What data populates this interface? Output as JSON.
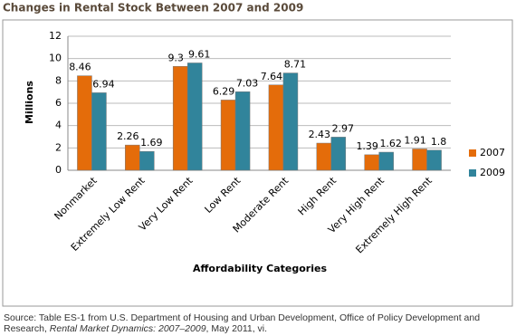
{
  "chart_data": {
    "type": "bar",
    "title": "Changes in Rental Stock Between 2007 and 2009",
    "categories": [
      "Nonmarket",
      "Extremely Low Rent",
      "Very Low Rent",
      "Low Rent",
      "Moderate Rent",
      "High Rent",
      "Very High Rent",
      "Extremely High Rent"
    ],
    "series": [
      {
        "name": "2007",
        "color": "#e46c0a",
        "values": [
          8.46,
          2.26,
          9.3,
          6.29,
          7.64,
          2.43,
          1.39,
          1.91
        ]
      },
      {
        "name": "2009",
        "color": "#31849b",
        "values": [
          6.94,
          1.69,
          9.61,
          7.03,
          8.71,
          2.97,
          1.62,
          1.8
        ]
      }
    ],
    "ylabel": "Millions",
    "xlabel": "Affordability Categories",
    "ylim": [
      0,
      12
    ],
    "yticks": [
      0,
      2,
      4,
      6,
      8,
      10,
      12
    ],
    "grid": true,
    "legend": "right"
  },
  "source": {
    "before": "Source: Table ES-1 from U.S. Department of Housing and Urban Development, Office of Policy Development and Research,",
    "italic": "Rental Market Dynamics: 2007–2009",
    "after": ", May 2011, vi."
  }
}
